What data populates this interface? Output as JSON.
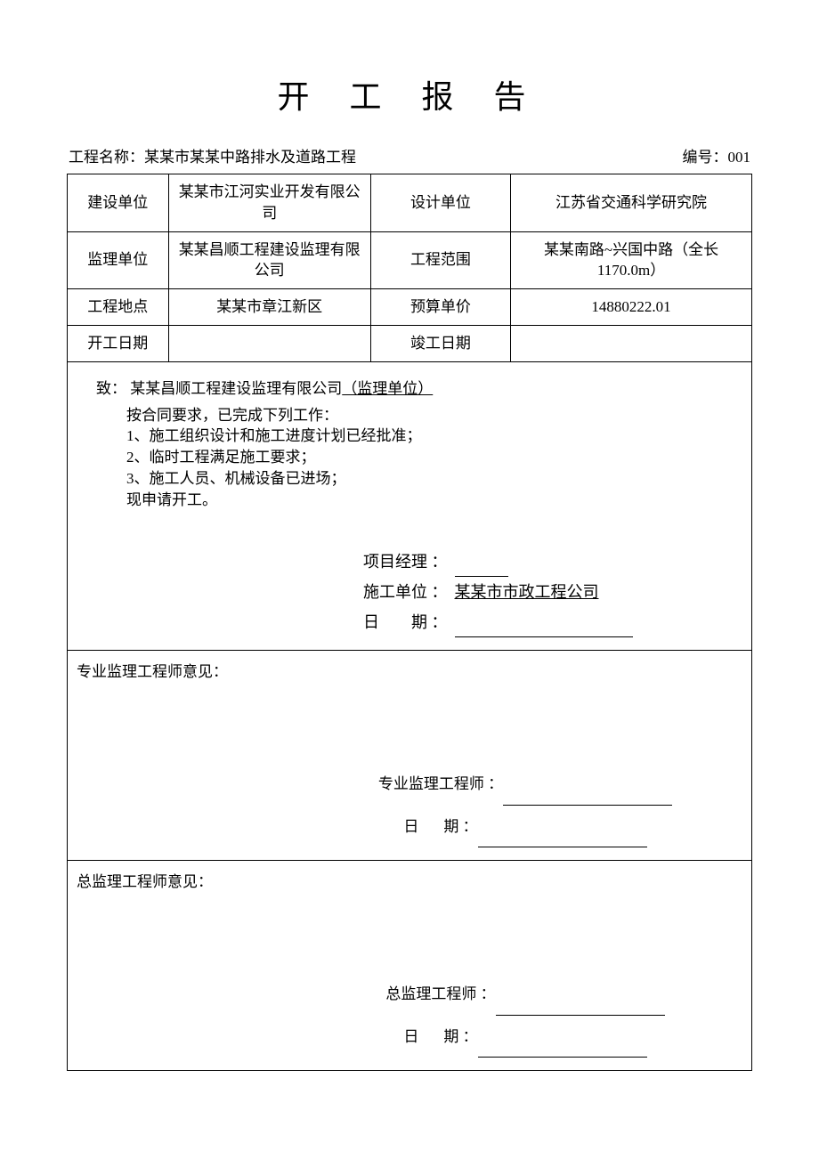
{
  "title": "开 工 报 告",
  "header": {
    "project_label": "工程名称：",
    "project_name": "某某市某某中路排水及道路工程",
    "number_label": "编号：",
    "number_value": "001"
  },
  "table": {
    "rows": [
      {
        "l1": "建设单位",
        "v1": "某某市江河实业开发有限公司",
        "l2": "设计单位",
        "v2": "江苏省交通科学研究院"
      },
      {
        "l1": "监理单位",
        "v1": "某某昌顺工程建设监理有限公司",
        "l2": "工程范围",
        "v2": "某某南路~兴国中路（全长 1170.0m）"
      },
      {
        "l1": "工程地点",
        "v1": "某某市章江新区",
        "l2": "预算单价",
        "v2": "14880222.01"
      },
      {
        "l1": "开工日期",
        "v1": "",
        "l2": "竣工日期",
        "v2": ""
      }
    ]
  },
  "body": {
    "to_prefix": "致：",
    "to_company": "某某昌顺工程建设监理有限公司",
    "to_suffix": "（监理单位）",
    "intro": "按合同要求，已完成下列工作：",
    "items": [
      "1、施工组织设计和施工进度计划已经批准；",
      "2、临时工程满足施工要求；",
      "3、施工人员、机械设备已进场；"
    ],
    "apply": "现申请开工。",
    "sign": {
      "pm_label": "项目经理 ：",
      "unit_label": "施工单位 ：",
      "unit_value": "某某市市政工程公司",
      "date_label": "日　　期 ："
    }
  },
  "opinion1": {
    "title": "专业监理工程师意见：",
    "sign_label": "专业监理工程师 ：",
    "date_label": "日",
    "date_suffix": "期 ："
  },
  "opinion2": {
    "title": "总监理工程师意见：",
    "sign_label": "总监理工程师 ：",
    "date_label": "日",
    "date_suffix": "期 ："
  }
}
